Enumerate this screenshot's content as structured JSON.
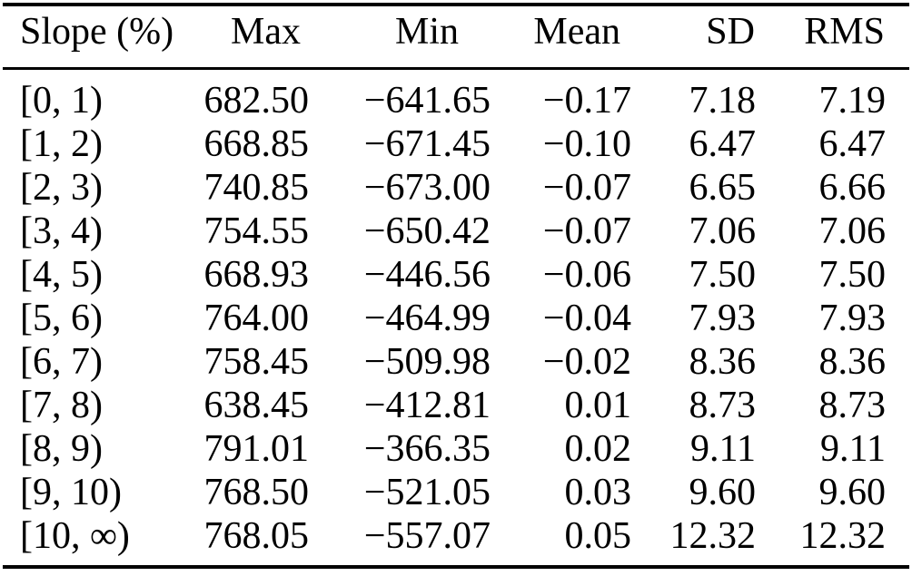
{
  "table": {
    "headers": {
      "slope": "Slope (%)",
      "max": "Max",
      "min": "Min",
      "mean": "Mean",
      "sd": "SD",
      "rms": "RMS"
    },
    "rows": [
      [
        "[0, 1)",
        "682.50",
        "−641.65",
        "−0.17",
        "7.18",
        "7.19"
      ],
      [
        "[1, 2)",
        "668.85",
        "−671.45",
        "−0.10",
        "6.47",
        "6.47"
      ],
      [
        "[2, 3)",
        "740.85",
        "−673.00",
        "−0.07",
        "6.65",
        "6.66"
      ],
      [
        "[3, 4)",
        "754.55",
        "−650.42",
        "−0.07",
        "7.06",
        "7.06"
      ],
      [
        "[4, 5)",
        "668.93",
        "−446.56",
        "−0.06",
        "7.50",
        "7.50"
      ],
      [
        "[5, 6)",
        "764.00",
        "−464.99",
        "−0.04",
        "7.93",
        "7.93"
      ],
      [
        "[6, 7)",
        "758.45",
        "−509.98",
        "−0.02",
        "8.36",
        "8.36"
      ],
      [
        "[7, 8)",
        "638.45",
        "−412.81",
        "0.01",
        "8.73",
        "8.73"
      ],
      [
        "[8, 9)",
        "791.01",
        "−366.35",
        "0.02",
        "9.11",
        "9.11"
      ],
      [
        "[9, 10)",
        "768.50",
        "−521.05",
        "0.03",
        "9.60",
        "9.60"
      ],
      [
        "[10, ∞)",
        "768.05",
        "−557.07",
        "0.05",
        "12.32",
        "12.32"
      ]
    ],
    "text_color": "#000000",
    "background_color": "#ffffff",
    "rule_color": "#000000"
  },
  "chart_data": {
    "type": "table",
    "title": "",
    "columns": [
      "Slope (%)",
      "Max",
      "Min",
      "Mean",
      "SD",
      "RMS"
    ],
    "categories": [
      "[0, 1)",
      "[1, 2)",
      "[2, 3)",
      "[3, 4)",
      "[4, 5)",
      "[5, 6)",
      "[6, 7)",
      "[7, 8)",
      "[8, 9)",
      "[9, 10)",
      "[10, ∞)"
    ],
    "series": [
      {
        "name": "Max",
        "values": [
          682.5,
          668.85,
          740.85,
          754.55,
          668.93,
          764.0,
          758.45,
          638.45,
          791.01,
          768.5,
          768.05
        ]
      },
      {
        "name": "Min",
        "values": [
          -641.65,
          -671.45,
          -673.0,
          -650.42,
          -446.56,
          -464.99,
          -509.98,
          -412.81,
          -366.35,
          -521.05,
          -557.07
        ]
      },
      {
        "name": "Mean",
        "values": [
          -0.17,
          -0.1,
          -0.07,
          -0.07,
          -0.06,
          -0.04,
          -0.02,
          0.01,
          0.02,
          0.03,
          0.05
        ]
      },
      {
        "name": "SD",
        "values": [
          7.18,
          6.47,
          6.65,
          7.06,
          7.5,
          7.93,
          8.36,
          8.73,
          9.11,
          9.6,
          12.32
        ]
      },
      {
        "name": "RMS",
        "values": [
          7.19,
          6.47,
          6.66,
          7.06,
          7.5,
          7.93,
          8.36,
          8.73,
          9.11,
          9.6,
          12.32
        ]
      }
    ]
  }
}
